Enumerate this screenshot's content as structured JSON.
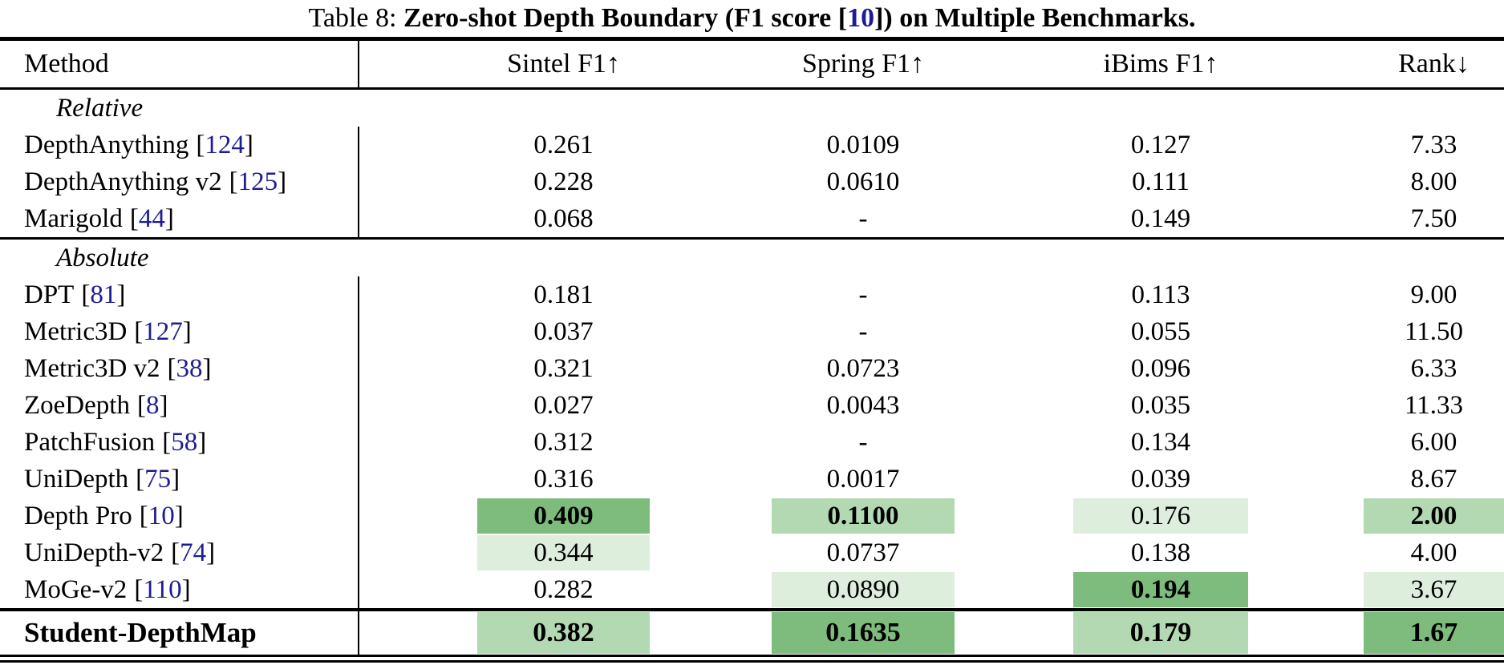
{
  "caption": {
    "prefix": "Table 8: ",
    "bold_main": "Zero-shot Depth Boundary (F1 score ",
    "cite": "10",
    "bold_tail": ") on Multiple Benchmarks."
  },
  "punct": {
    "lb": "[",
    "rb": "]"
  },
  "palette": {
    "highlight_dark": "#7dbc7d",
    "highlight_medium": "#b3d9b3",
    "highlight_light": "#ddeedd",
    "citation_color": "#1c1c94"
  },
  "header": {
    "method": "Method",
    "sintel": "Sintel F1↑",
    "spring": "Spring F1↑",
    "ibims": "iBims F1↑",
    "rank": "Rank↓"
  },
  "sections": {
    "relative": "Relative",
    "absolute": "Absolute"
  },
  "rows": [
    {
      "method": "DepthAnything",
      "cite": "124",
      "c0": "0.261",
      "c1": "0.0109",
      "c2": "0.127",
      "c3": "7.33"
    },
    {
      "method": "DepthAnything v2",
      "cite": "125",
      "c0": "0.228",
      "c1": "0.0610",
      "c2": "0.111",
      "c3": "8.00"
    },
    {
      "method": "Marigold",
      "cite": "44",
      "c0": "0.068",
      "c1": "-",
      "c2": "0.149",
      "c3": "7.50"
    },
    {
      "method": "DPT",
      "cite": "81",
      "c0": "0.181",
      "c1": "-",
      "c2": "0.113",
      "c3": "9.00"
    },
    {
      "method": "Metric3D",
      "cite": "127",
      "c0": "0.037",
      "c1": "-",
      "c2": "0.055",
      "c3": "11.50"
    },
    {
      "method": "Metric3D v2",
      "cite": "38",
      "c0": "0.321",
      "c1": "0.0723",
      "c2": "0.096",
      "c3": "6.33"
    },
    {
      "method": "ZoeDepth",
      "cite": "8",
      "c0": "0.027",
      "c1": "0.0043",
      "c2": "0.035",
      "c3": "11.33"
    },
    {
      "method": "PatchFusion",
      "cite": "58",
      "c0": "0.312",
      "c1": "-",
      "c2": "0.134",
      "c3": "6.00"
    },
    {
      "method": "UniDepth",
      "cite": "75",
      "c0": "0.316",
      "c1": "0.0017",
      "c2": "0.039",
      "c3": "8.67"
    },
    {
      "method": "Depth Pro",
      "cite": "10",
      "c0": "0.409",
      "c1": "0.1100",
      "c2": "0.176",
      "c3": "2.00"
    },
    {
      "method": "UniDepth-v2",
      "cite": "74",
      "c0": "0.344",
      "c1": "0.0737",
      "c2": "0.138",
      "c3": "4.00"
    },
    {
      "method": "MoGe-v2",
      "cite": "110",
      "c0": "0.282",
      "c1": "0.0890",
      "c2": "0.194",
      "c3": "3.67"
    }
  ],
  "student": {
    "method": "Student-DepthMap",
    "c0": "0.382",
    "c1": "0.1635",
    "c2": "0.179",
    "c3": "1.67"
  }
}
